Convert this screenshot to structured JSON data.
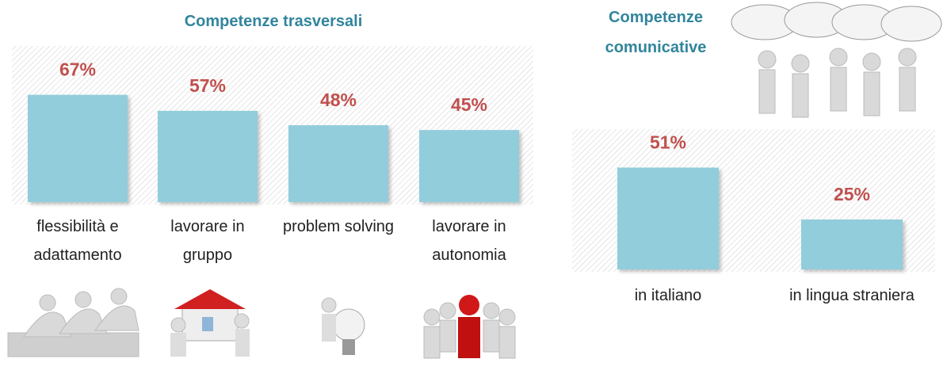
{
  "chart_data": [
    {
      "type": "bar",
      "title": "Competenze trasversali",
      "categories": [
        "flessibilità e adattamento",
        "lavorare in gruppo",
        "problem solving",
        "lavorare in autonomia"
      ],
      "values": [
        67,
        57,
        48,
        45
      ],
      "value_labels": [
        "67%",
        "57%",
        "48%",
        "45%"
      ],
      "color": "#92cddc"
    },
    {
      "type": "bar",
      "title": "Competenze comunicative",
      "categories": [
        "in italiano",
        "in lingua straniera"
      ],
      "values": [
        51,
        25
      ],
      "value_labels": [
        "51%",
        "25%"
      ],
      "color": "#92cddc"
    }
  ]
}
